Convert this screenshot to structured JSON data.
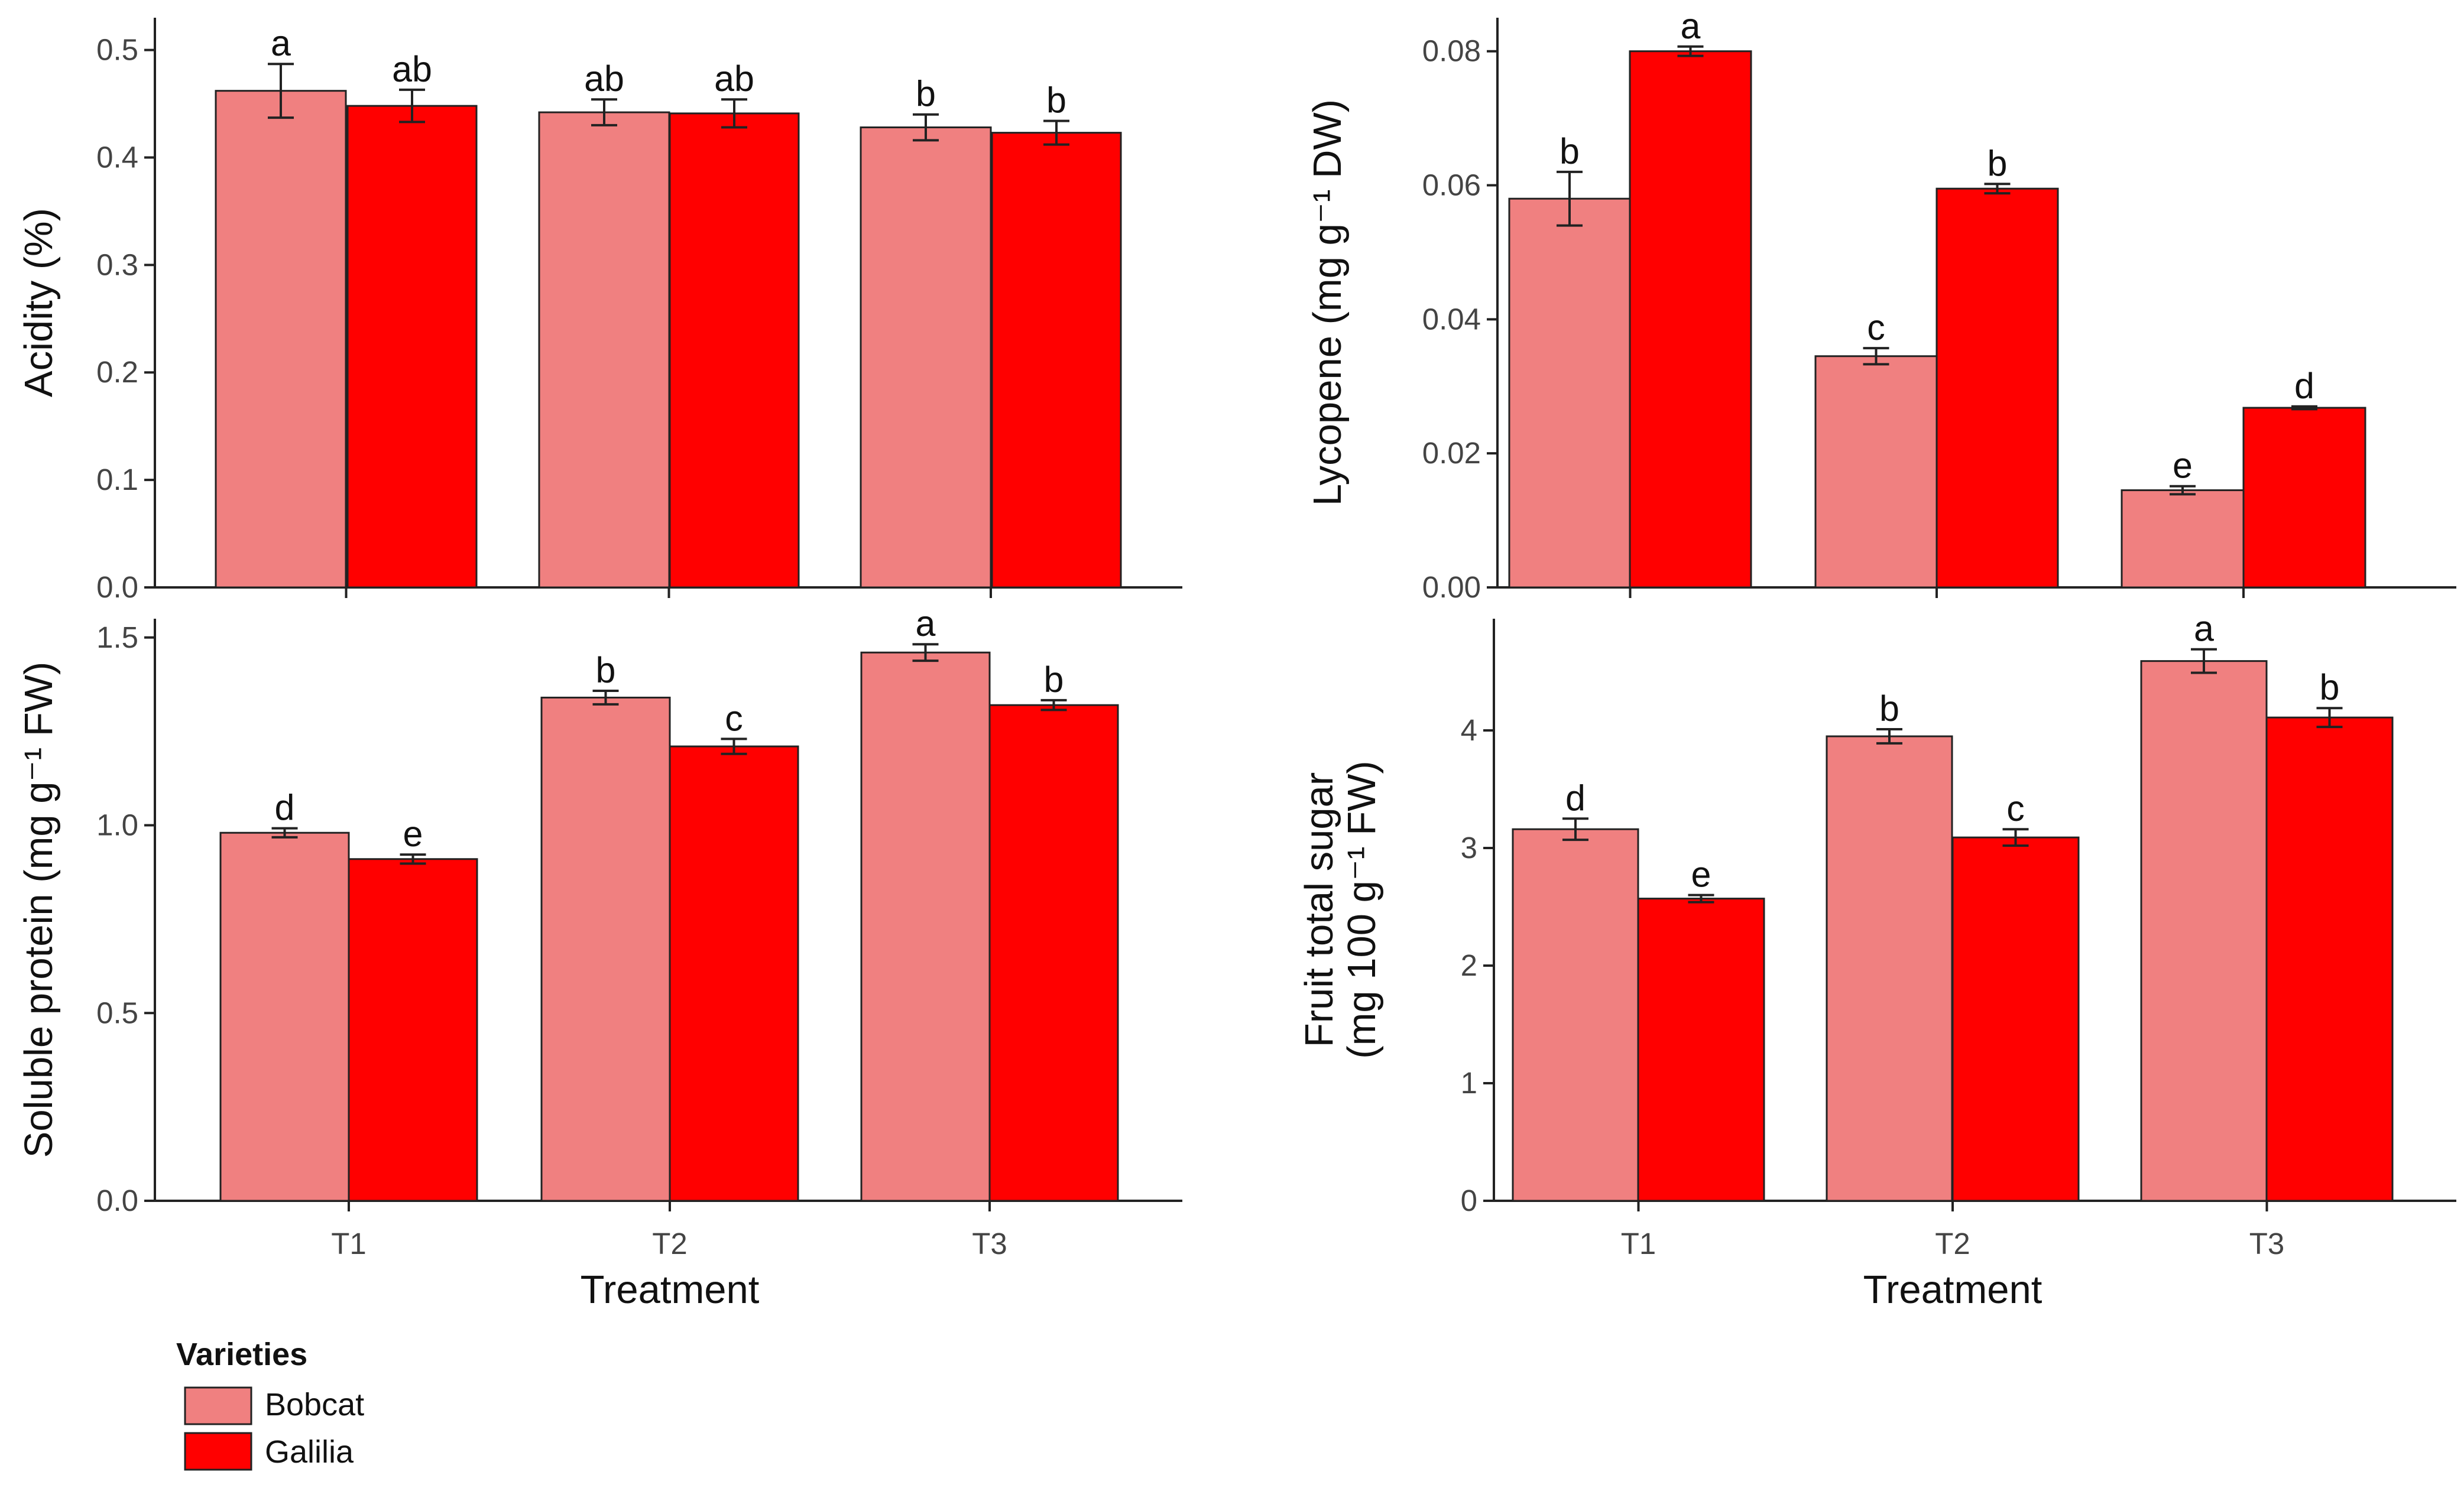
{
  "colors": {
    "Bobcat": "#F08080",
    "Galilia": "#FF0000"
  },
  "x_axis_title": "Treatment",
  "legend": {
    "title": "Varieties",
    "entries": [
      {
        "name": "Bobcat",
        "color": "#F08080"
      },
      {
        "name": "Galilia",
        "color": "#FF0000"
      }
    ]
  },
  "chart_data": [
    {
      "id": "acidity",
      "type": "bar",
      "ylabel": "Acidity (%)",
      "categories": [
        "T1",
        "T2",
        "T3"
      ],
      "ylim": [
        0,
        0.53
      ],
      "yticks": [
        0.0,
        0.1,
        0.2,
        0.3,
        0.4,
        0.5
      ],
      "tick_labels": [
        "0.0",
        "0.1",
        "0.2",
        "0.3",
        "0.4",
        "0.5"
      ],
      "show_xticks": false,
      "series": [
        {
          "name": "Bobcat",
          "values": [
            0.462,
            0.442,
            0.428
          ],
          "errors": [
            0.025,
            0.012,
            0.012
          ],
          "letters": [
            "a",
            "ab",
            "b"
          ]
        },
        {
          "name": "Galilia",
          "values": [
            0.448,
            0.441,
            0.423
          ],
          "errors": [
            0.015,
            0.013,
            0.011
          ],
          "letters": [
            "ab",
            "ab",
            "b"
          ]
        }
      ]
    },
    {
      "id": "lycopene",
      "type": "bar",
      "ylabel": "Lycopene (mg g⁻¹ DW)",
      "categories": [
        "T1",
        "T2",
        "T3"
      ],
      "ylim": [
        0,
        0.085
      ],
      "yticks": [
        0.0,
        0.02,
        0.04,
        0.06,
        0.08
      ],
      "tick_labels": [
        "0.00",
        "0.02",
        "0.04",
        "0.06",
        "0.08"
      ],
      "show_xticks": false,
      "series": [
        {
          "name": "Bobcat",
          "values": [
            0.058,
            0.0345,
            0.0145
          ],
          "errors": [
            0.004,
            0.0012,
            0.0006
          ],
          "letters": [
            "b",
            "c",
            "e"
          ]
        },
        {
          "name": "Galilia",
          "values": [
            0.08,
            0.0595,
            0.0268
          ],
          "errors": [
            0.0007,
            0.0007,
            0.0002
          ],
          "letters": [
            "a",
            "b",
            "d"
          ]
        }
      ]
    },
    {
      "id": "soluble_protein",
      "type": "bar",
      "ylabel": "Soluble protein (mg g⁻¹ FW)",
      "categories": [
        "T1",
        "T2",
        "T3"
      ],
      "ylim": [
        0,
        1.55
      ],
      "yticks": [
        0.0,
        0.5,
        1.0,
        1.5
      ],
      "tick_labels": [
        "0.0",
        "0.5",
        "1.0",
        "1.5"
      ],
      "show_xticks": true,
      "series": [
        {
          "name": "Bobcat",
          "values": [
            0.98,
            1.34,
            1.46
          ],
          "errors": [
            0.012,
            0.018,
            0.022
          ],
          "letters": [
            "d",
            "b",
            "a"
          ]
        },
        {
          "name": "Galilia",
          "values": [
            0.91,
            1.21,
            1.32
          ],
          "errors": [
            0.012,
            0.02,
            0.013
          ],
          "letters": [
            "e",
            "c",
            "b"
          ]
        }
      ]
    },
    {
      "id": "fruit_total_sugar",
      "type": "bar",
      "ylabel": [
        "Fruit total sugar",
        "(mg 100 g⁻¹ FW)"
      ],
      "categories": [
        "T1",
        "T2",
        "T3"
      ],
      "ylim": [
        0,
        4.95
      ],
      "yticks": [
        0,
        1,
        2,
        3,
        4
      ],
      "tick_labels": [
        "0",
        "1",
        "2",
        "3",
        "4"
      ],
      "show_xticks": true,
      "series": [
        {
          "name": "Bobcat",
          "values": [
            3.16,
            3.95,
            4.59
          ],
          "errors": [
            0.09,
            0.06,
            0.1
          ],
          "letters": [
            "d",
            "b",
            "a"
          ]
        },
        {
          "name": "Galilia",
          "values": [
            2.57,
            3.09,
            4.11
          ],
          "errors": [
            0.03,
            0.07,
            0.08
          ],
          "letters": [
            "e",
            "c",
            "b"
          ]
        }
      ]
    }
  ]
}
